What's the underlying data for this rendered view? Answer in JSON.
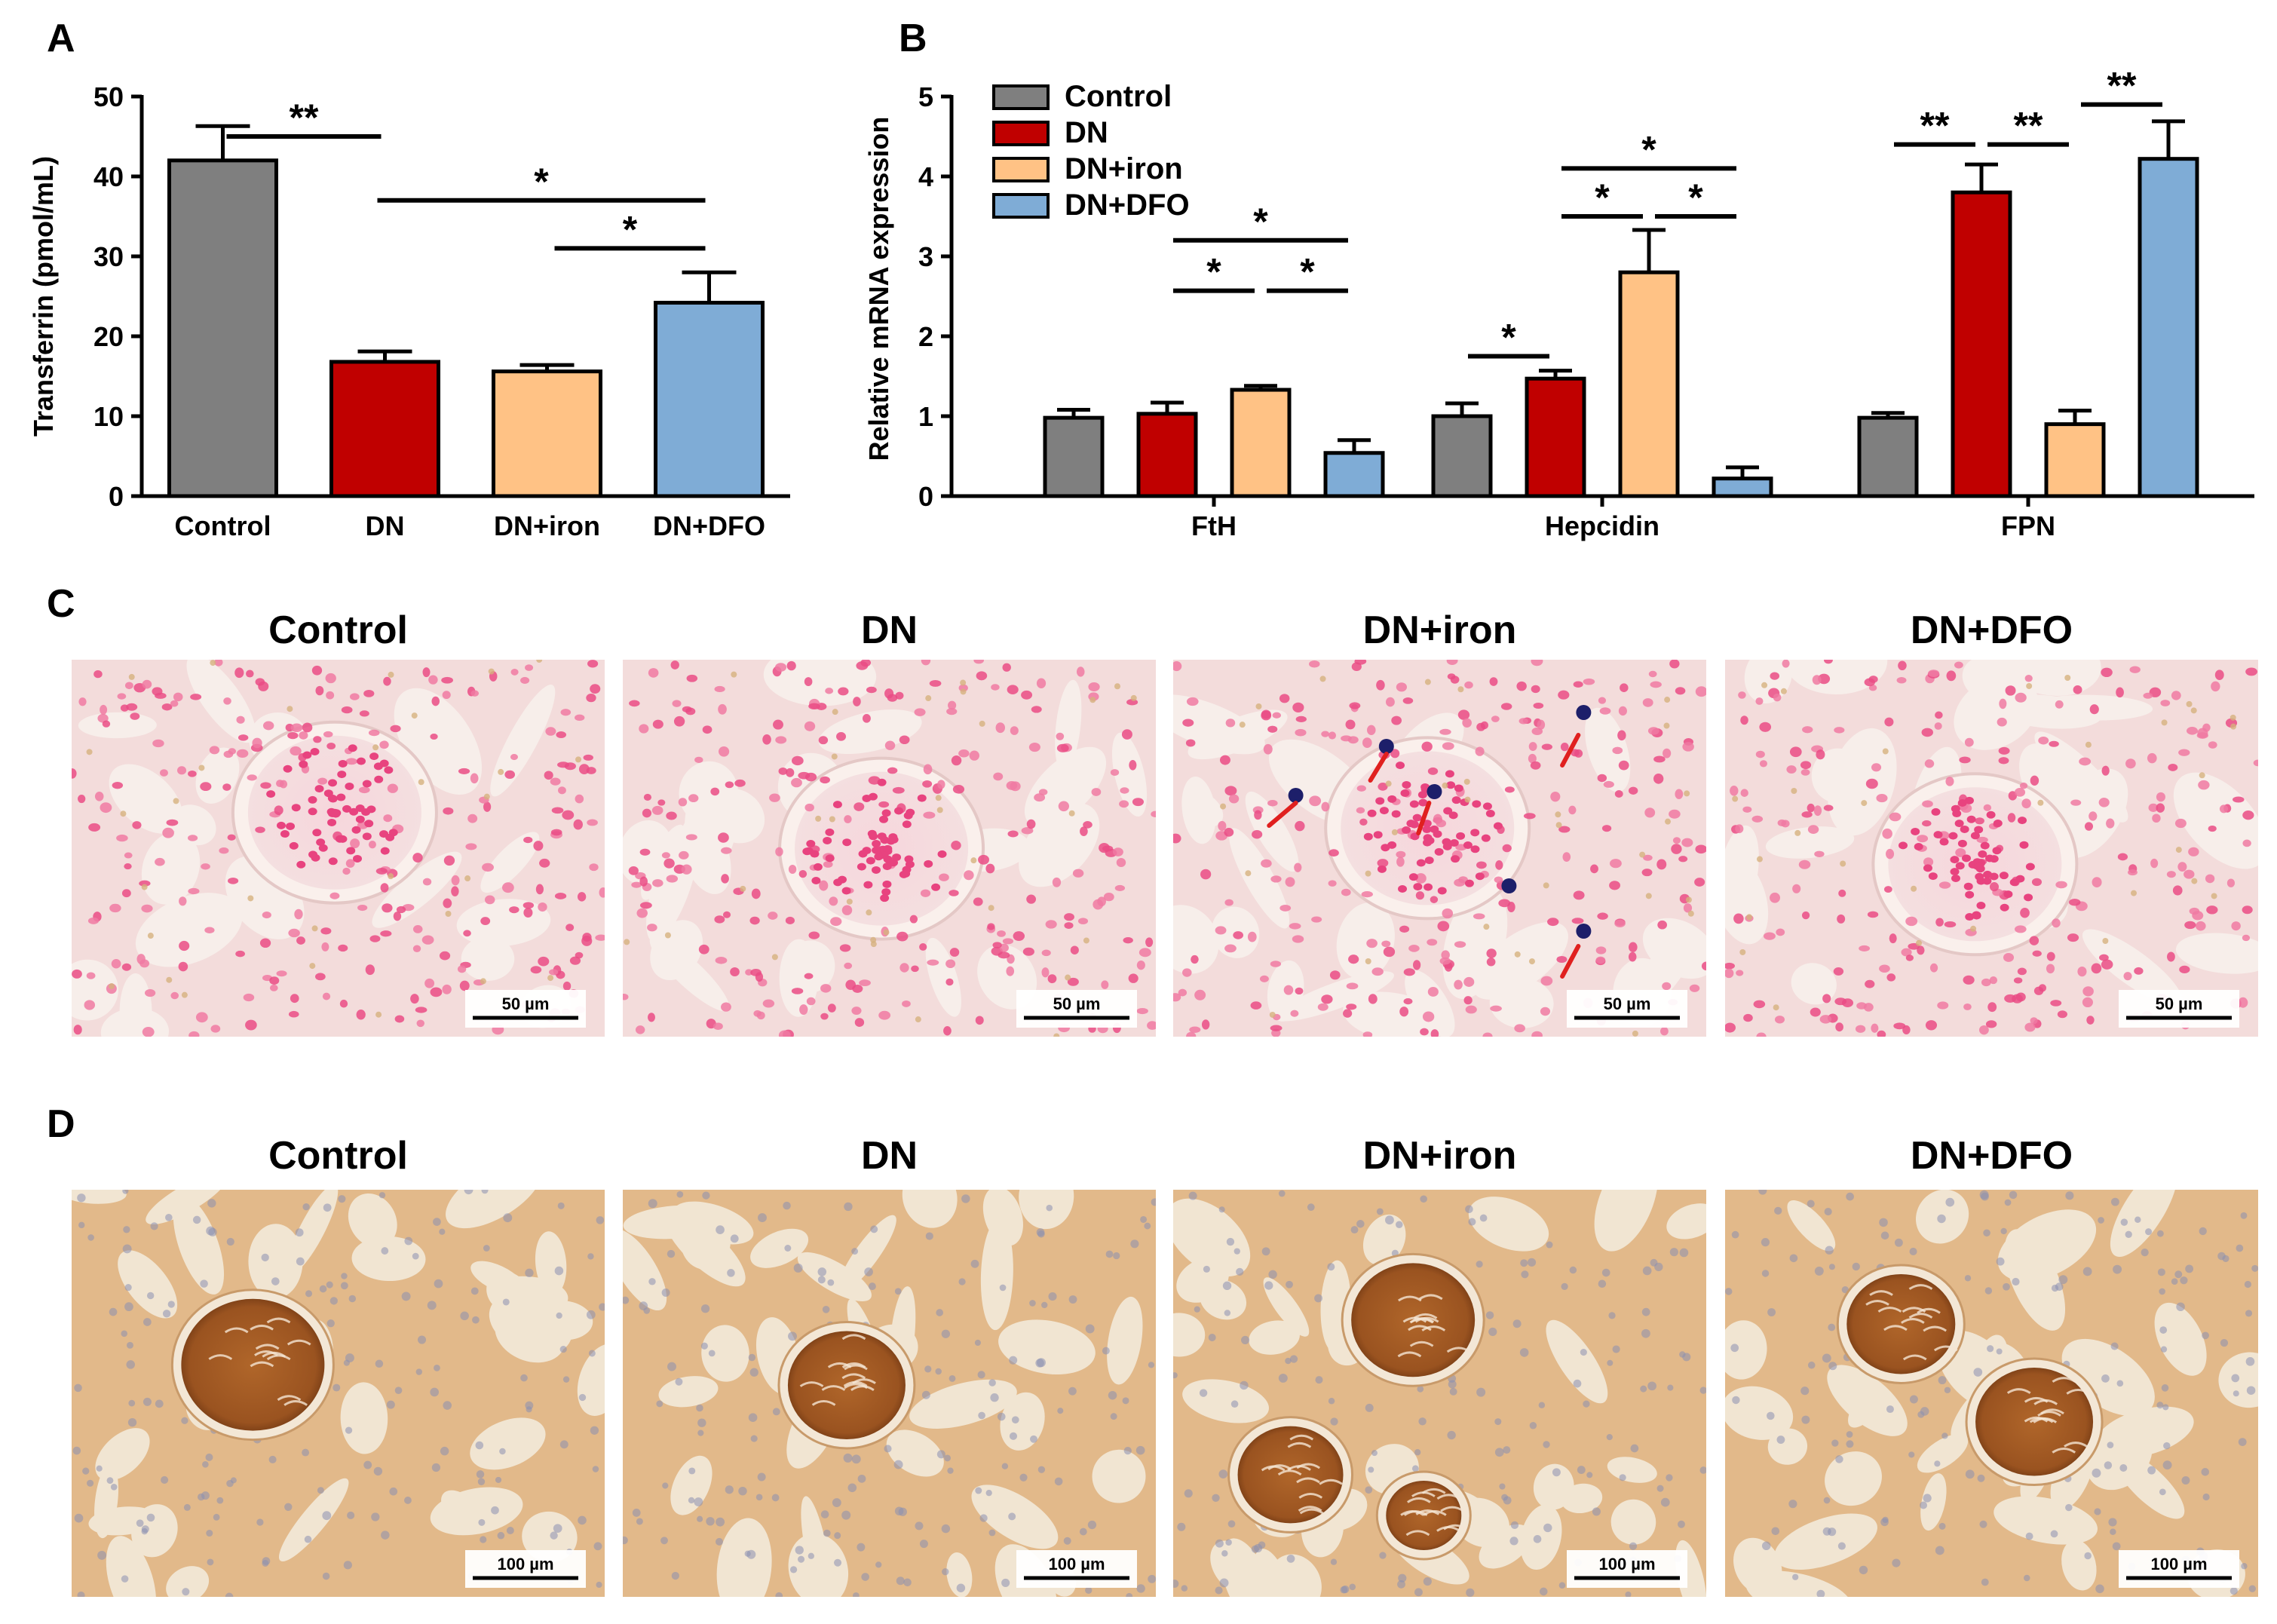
{
  "panels": {
    "A": "A",
    "B": "B",
    "C": "C",
    "D": "D"
  },
  "colors": {
    "Control": "#7f7f7f",
    "DN": "#c00000",
    "DN+iron": "#ffc285",
    "DN+DFO": "#7facd6",
    "arrow": "#e0201f"
  },
  "chart_data": [
    {
      "type": "bar",
      "categories": [
        "Control",
        "DN",
        "DN+iron",
        "DN+DFO"
      ],
      "values": [
        42,
        16.8,
        15.6,
        24.2
      ],
      "errors": [
        4.3,
        1.3,
        0.8,
        3.8
      ],
      "ylabel": "Transferrin (pmol/mL)",
      "ylim": [
        0,
        50
      ],
      "yticks": [
        0,
        10,
        20,
        30,
        40,
        50
      ],
      "significance": [
        {
          "from": 0,
          "to": 1,
          "label": "**"
        },
        {
          "from": 1,
          "to": 3,
          "label": "*"
        },
        {
          "from": 2,
          "to": 3,
          "label": "*"
        }
      ]
    },
    {
      "type": "bar",
      "categories": [
        "FtH",
        "Hepcidin",
        "FPN"
      ],
      "series": [
        {
          "name": "Control",
          "values": [
            0.98,
            1.0,
            0.98
          ],
          "errors": [
            0.1,
            0.16,
            0.06
          ]
        },
        {
          "name": "DN",
          "values": [
            1.03,
            1.47,
            3.8
          ],
          "errors": [
            0.14,
            0.1,
            0.35
          ]
        },
        {
          "name": "DN+iron",
          "values": [
            1.33,
            2.8,
            0.9
          ],
          "errors": [
            0.05,
            0.53,
            0.17
          ]
        },
        {
          "name": "DN+DFO",
          "values": [
            0.54,
            0.22,
            4.22
          ],
          "errors": [
            0.16,
            0.14,
            0.47
          ]
        }
      ],
      "ylabel": "Relative mRNA expression",
      "ylim": [
        0,
        5
      ],
      "yticks": [
        0,
        1,
        2,
        3,
        4,
        5
      ],
      "legend_position": "top-left",
      "significance": [
        {
          "category": 0,
          "from": 1,
          "to": 2,
          "label": "*"
        },
        {
          "category": 0,
          "from": 2,
          "to": 3,
          "label": "*"
        },
        {
          "category": 0,
          "from": 1,
          "to": 3,
          "label": "*"
        },
        {
          "category": 1,
          "from": 0,
          "to": 1,
          "label": "*"
        },
        {
          "category": 1,
          "from": 1,
          "to": 2,
          "label": "*"
        },
        {
          "category": 1,
          "from": 2,
          "to": 3,
          "label": "*"
        },
        {
          "category": 1,
          "from": 1,
          "to": 3,
          "label": "*"
        },
        {
          "category": 2,
          "from": 0,
          "to": 1,
          "label": "**"
        },
        {
          "category": 2,
          "from": 1,
          "to": 2,
          "label": "**"
        },
        {
          "category": 2,
          "from": 2,
          "to": 3,
          "label": "**"
        }
      ]
    }
  ],
  "micrographs": {
    "C": {
      "titles": [
        "Control",
        "DN",
        "DN+iron",
        "DN+DFO"
      ],
      "scale_label": "50 µm",
      "stain": "prussian-blue"
    },
    "D": {
      "titles": [
        "Control",
        "DN",
        "DN+iron",
        "DN+DFO"
      ],
      "scale_label": "100 µm",
      "stain": "ihc-brown"
    }
  }
}
